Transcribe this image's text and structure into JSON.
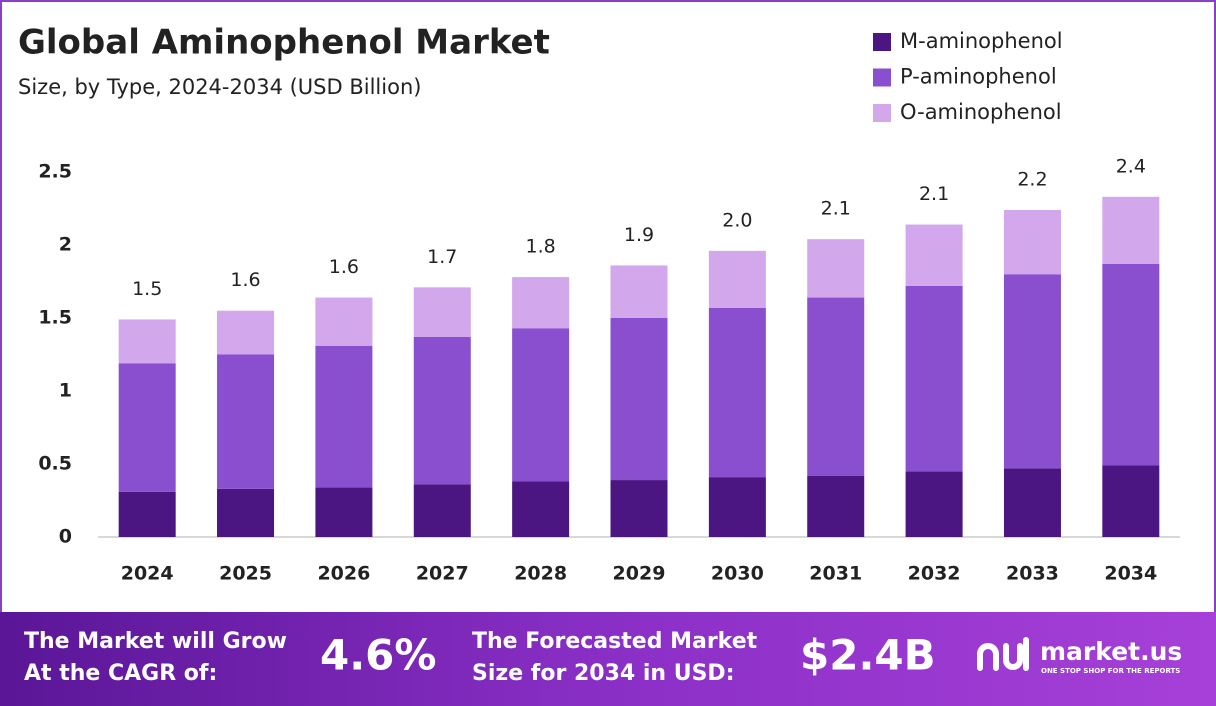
{
  "chart_data": {
    "type": "stacked_bar",
    "title": "Global Aminophenol Market",
    "subtitle": "Size, by Type, 2024-2034 (USD Billion)",
    "categories": [
      "2024",
      "2025",
      "2026",
      "2027",
      "2028",
      "2029",
      "2030",
      "2031",
      "2032",
      "2033",
      "2034"
    ],
    "series": [
      {
        "name": "M-aminophenol",
        "color": "#4b1681",
        "values": [
          0.31,
          0.33,
          0.34,
          0.36,
          0.38,
          0.39,
          0.41,
          0.42,
          0.45,
          0.47,
          0.49
        ]
      },
      {
        "name": "P-aminophenol",
        "color": "#8a4fcf",
        "values": [
          0.88,
          0.92,
          0.97,
          1.01,
          1.05,
          1.11,
          1.16,
          1.22,
          1.27,
          1.33,
          1.38
        ]
      },
      {
        "name": "O-aminophenol",
        "color": "#d2a7ec",
        "values": [
          0.3,
          0.3,
          0.33,
          0.34,
          0.35,
          0.36,
          0.39,
          0.4,
          0.42,
          0.44,
          0.46
        ]
      }
    ],
    "total_labels": [
      "1.5",
      "1.6",
      "1.6",
      "1.7",
      "1.8",
      "1.9",
      "2.0",
      "2.1",
      "2.1",
      "2.2",
      "2.4"
    ],
    "ylim": [
      0,
      2.5
    ],
    "yticks": [
      0,
      0.5,
      1,
      1.5,
      2,
      2.5
    ],
    "grid": false,
    "legend": "top-right"
  },
  "footer": {
    "cagr_text_1": "The Market will Grow",
    "cagr_text_2": "At the CAGR of:",
    "cagr_value": "4.6%",
    "size_text_1": "The Forecasted Market",
    "size_text_2": "Size for 2034 in USD:",
    "size_value": "$2.4B",
    "brand": "market.us",
    "tagline": "ONE STOP SHOP FOR THE REPORTS"
  }
}
